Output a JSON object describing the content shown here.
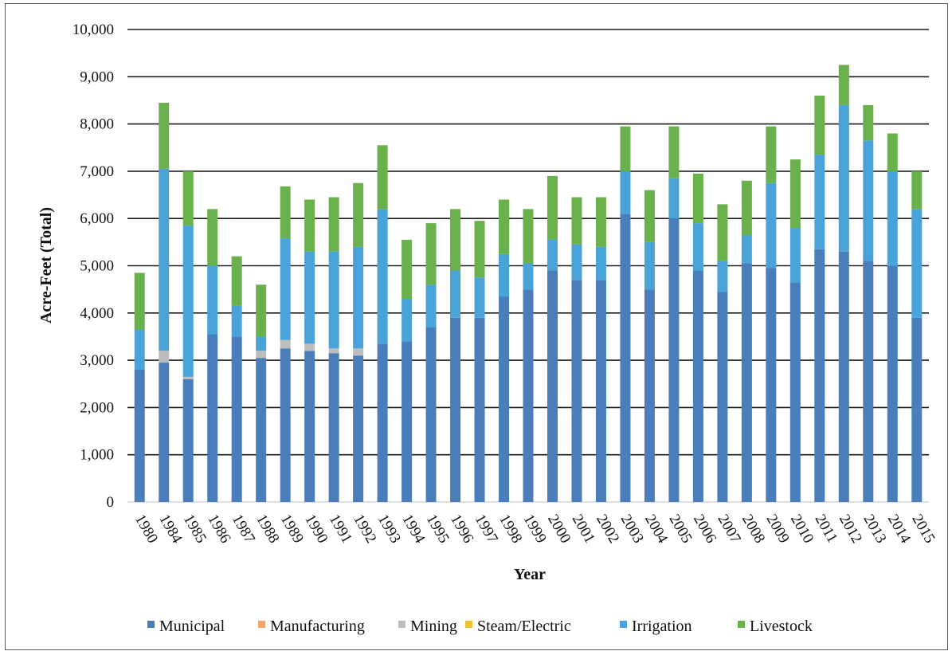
{
  "chart_data": {
    "type": "bar",
    "stacked": true,
    "title": "",
    "xlabel": "Year",
    "ylabel": "Acre-Feet (Total)",
    "ylim": [
      0,
      10000
    ],
    "ytick_labels": [
      "0",
      "1,000",
      "2,000",
      "3,000",
      "4,000",
      "5,000",
      "6,000",
      "7,000",
      "8,000",
      "9,000",
      "10,000"
    ],
    "grid": true,
    "legend_position": "bottom",
    "categories": [
      "1980",
      "1984",
      "1985",
      "1986",
      "1987",
      "1988",
      "1989",
      "1990",
      "1991",
      "1992",
      "1993",
      "1994",
      "1995",
      "1996",
      "1997",
      "1998",
      "1999",
      "2000",
      "2001",
      "2002",
      "2003",
      "2004",
      "2005",
      "2006",
      "2007",
      "2008",
      "2009",
      "2010",
      "2011",
      "2012",
      "2013",
      "2014",
      "2015"
    ],
    "series": [
      {
        "name": "Municipal",
        "color": "#4a7ebb",
        "values": [
          2800,
          2950,
          2600,
          3550,
          3500,
          3050,
          3250,
          3200,
          3150,
          3100,
          3350,
          3400,
          3700,
          3900,
          3900,
          4350,
          4500,
          4900,
          4700,
          4700,
          6100,
          4500,
          6000,
          4900,
          4450,
          5050,
          4950,
          4650,
          5350,
          5300,
          5100,
          5000,
          3900
        ]
      },
      {
        "name": "Manufacturing",
        "color": "#f4a26b",
        "values": [
          0,
          0,
          0,
          0,
          0,
          0,
          0,
          0,
          0,
          0,
          0,
          0,
          0,
          0,
          0,
          0,
          0,
          0,
          0,
          0,
          0,
          0,
          0,
          0,
          0,
          0,
          0,
          0,
          0,
          0,
          0,
          0,
          0
        ]
      },
      {
        "name": "Mining",
        "color": "#bdbdbd",
        "values": [
          0,
          250,
          50,
          0,
          0,
          150,
          180,
          150,
          100,
          150,
          0,
          0,
          0,
          0,
          0,
          0,
          0,
          0,
          0,
          0,
          0,
          0,
          0,
          0,
          0,
          0,
          0,
          0,
          0,
          0,
          0,
          0,
          0
        ]
      },
      {
        "name": "Steam/Electric",
        "color": "#f2c12e",
        "values": [
          0,
          0,
          0,
          0,
          0,
          0,
          0,
          0,
          0,
          0,
          0,
          0,
          0,
          0,
          0,
          0,
          0,
          0,
          0,
          0,
          0,
          0,
          0,
          0,
          0,
          0,
          0,
          0,
          0,
          0,
          0,
          0,
          0
        ]
      },
      {
        "name": "Irrigation",
        "color": "#4aa3d8",
        "values": [
          850,
          3850,
          3200,
          1450,
          650,
          300,
          2150,
          1950,
          2050,
          2150,
          2850,
          900,
          900,
          1000,
          850,
          900,
          550,
          650,
          750,
          700,
          900,
          1000,
          850,
          1000,
          650,
          600,
          1800,
          1150,
          2000,
          3100,
          2550,
          2000,
          2300
        ]
      },
      {
        "name": "Livestock",
        "color": "#6ab04c",
        "values": [
          1200,
          1400,
          1150,
          1200,
          1050,
          1100,
          1100,
          1100,
          1150,
          1350,
          1350,
          1250,
          1300,
          1300,
          1200,
          1150,
          1150,
          1350,
          1000,
          1050,
          950,
          1100,
          1100,
          1050,
          1200,
          1150,
          1200,
          1450,
          1250,
          850,
          750,
          800,
          800
        ]
      }
    ]
  }
}
